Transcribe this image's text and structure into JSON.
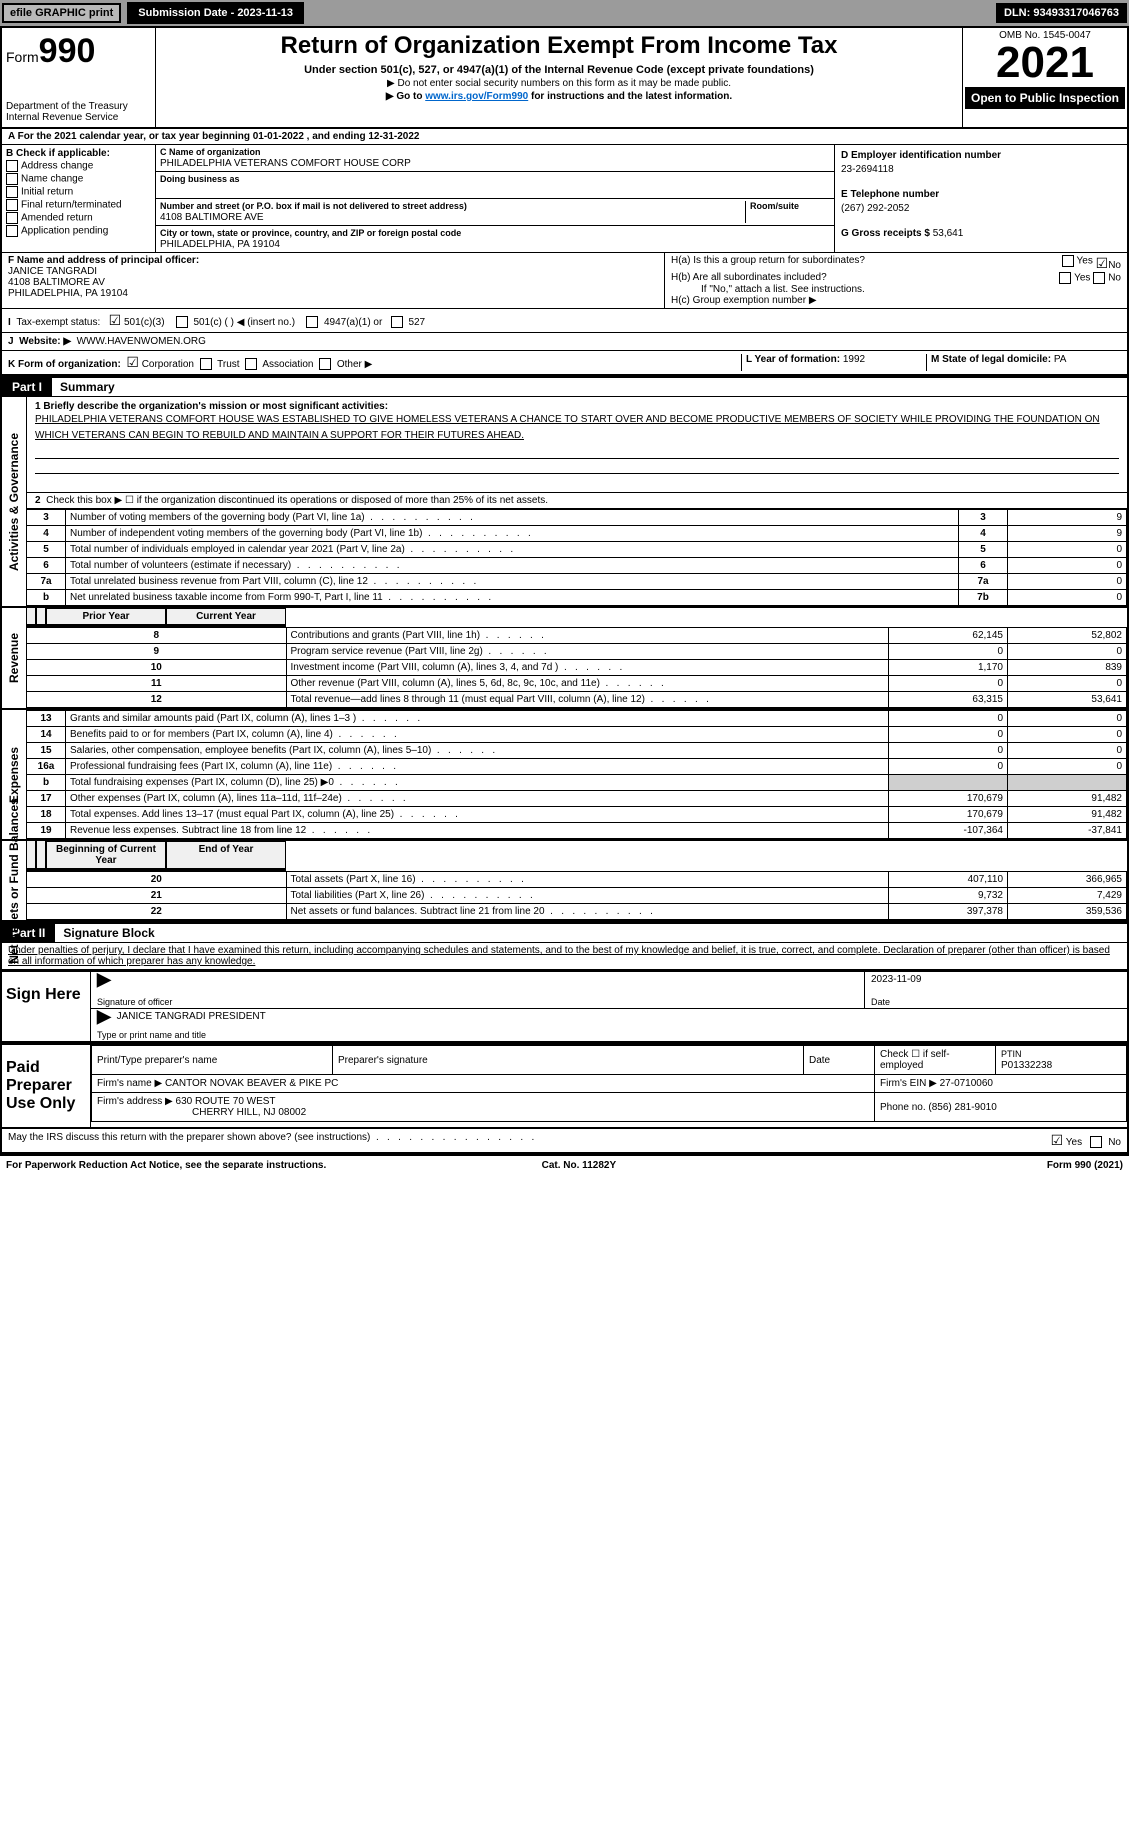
{
  "topbar": {
    "efile": "efile GRAPHIC print",
    "sub_label": "Submission Date - 2023-11-13",
    "dln": "DLN: 93493317046763"
  },
  "header": {
    "form_prefix": "Form",
    "form_no": "990",
    "dept": "Department of the Treasury",
    "irs": "Internal Revenue Service",
    "title": "Return of Organization Exempt From Income Tax",
    "subtitle": "Under section 501(c), 527, or 4947(a)(1) of the Internal Revenue Code (except private foundations)",
    "note1": "▶ Do not enter social security numbers on this form as it may be made public.",
    "note2_pre": "▶ Go to ",
    "note2_link": "www.irs.gov/Form990",
    "note2_post": " for instructions and the latest information.",
    "omb": "OMB No. 1545-0047",
    "year": "2021",
    "open": "Open to Public Inspection"
  },
  "period": {
    "text": "For the 2021 calendar year, or tax year beginning 01-01-2022   , and ending 12-31-2022"
  },
  "blockB": {
    "title": "B Check if applicable:",
    "items": [
      "Address change",
      "Name change",
      "Initial return",
      "Final return/terminated",
      "Amended return",
      "Application pending"
    ]
  },
  "blockC": {
    "name_lbl": "C Name of organization",
    "name": "PHILADELPHIA VETERANS COMFORT HOUSE CORP",
    "dba_lbl": "Doing business as",
    "dba": "",
    "addr_lbl": "Number and street (or P.O. box if mail is not delivered to street address)",
    "room_lbl": "Room/suite",
    "addr": "4108 BALTIMORE AVE",
    "city_lbl": "City or town, state or province, country, and ZIP or foreign postal code",
    "city": "PHILADELPHIA, PA  19104"
  },
  "blockR": {
    "ein_lbl": "D Employer identification number",
    "ein": "23-2694118",
    "phone_lbl": "E Telephone number",
    "phone": "(267) 292-2052",
    "gross_lbl": "G Gross receipts $",
    "gross": "53,641"
  },
  "officer": {
    "lbl": "F  Name and address of principal officer:",
    "name": "JANICE TANGRADI",
    "addr1": "4108 BALTIMORE AV",
    "addr2": "PHILADELPHIA, PA  19104",
    "ha": "H(a)  Is this a group return for subordinates?",
    "hb": "H(b)  Are all subordinates included?",
    "hb_note": "If \"No,\" attach a list. See instructions.",
    "hc": "H(c)  Group exemption number ▶",
    "yes": "Yes",
    "no": "No"
  },
  "taxstatus": {
    "lbl": "Tax-exempt status:",
    "opts": [
      "501(c)(3)",
      "501(c) (  ) ◀ (insert no.)",
      "4947(a)(1) or",
      "527"
    ]
  },
  "website": {
    "lbl": "Website: ▶",
    "val": "WWW.HAVENWOMEN.ORG"
  },
  "orgform": {
    "lbl": "K Form of organization:",
    "opts": [
      "Corporation",
      "Trust",
      "Association",
      "Other ▶"
    ],
    "year_lbl": "L Year of formation:",
    "year": "1992",
    "state_lbl": "M State of legal domicile:",
    "state": "PA"
  },
  "part1": {
    "hdr": "Part I",
    "title": "Summary",
    "mission_lbl": "1  Briefly describe the organization's mission or most significant activities:",
    "mission": "PHILADELPHIA VETERANS COMFORT HOUSE WAS ESTABLISHED TO GIVE HOMELESS VETERANS A CHANCE TO START OVER AND BECOME PRODUCTIVE MEMBERS OF SOCIETY WHILE PROVIDING THE FOUNDATION ON WHICH VETERANS CAN BEGIN TO REBUILD AND MAINTAIN A SUPPORT FOR THEIR FUTURES AHEAD.",
    "line2": "Check this box ▶ ☐  if the organization discontinued its operations or disposed of more than 25% of its net assets.",
    "rows_a": [
      {
        "n": "3",
        "t": "Number of voting members of the governing body (Part VI, line 1a)",
        "c": "3",
        "v": "9"
      },
      {
        "n": "4",
        "t": "Number of independent voting members of the governing body (Part VI, line 1b)",
        "c": "4",
        "v": "9"
      },
      {
        "n": "5",
        "t": "Total number of individuals employed in calendar year 2021 (Part V, line 2a)",
        "c": "5",
        "v": "0"
      },
      {
        "n": "6",
        "t": "Total number of volunteers (estimate if necessary)",
        "c": "6",
        "v": "0"
      },
      {
        "n": "7a",
        "t": "Total unrelated business revenue from Part VIII, column (C), line 12",
        "c": "7a",
        "v": "0"
      },
      {
        "n": "b",
        "t": "Net unrelated business taxable income from Form 990-T, Part I, line 11",
        "c": "7b",
        "v": "0"
      }
    ],
    "col_prior": "Prior Year",
    "col_curr": "Current Year",
    "rows_rev": [
      {
        "n": "8",
        "t": "Contributions and grants (Part VIII, line 1h)",
        "p": "62,145",
        "c": "52,802"
      },
      {
        "n": "9",
        "t": "Program service revenue (Part VIII, line 2g)",
        "p": "0",
        "c": "0"
      },
      {
        "n": "10",
        "t": "Investment income (Part VIII, column (A), lines 3, 4, and 7d )",
        "p": "1,170",
        "c": "839"
      },
      {
        "n": "11",
        "t": "Other revenue (Part VIII, column (A), lines 5, 6d, 8c, 9c, 10c, and 11e)",
        "p": "0",
        "c": "0"
      },
      {
        "n": "12",
        "t": "Total revenue—add lines 8 through 11 (must equal Part VIII, column (A), line 12)",
        "p": "63,315",
        "c": "53,641"
      }
    ],
    "rows_exp": [
      {
        "n": "13",
        "t": "Grants and similar amounts paid (Part IX, column (A), lines 1–3 )",
        "p": "0",
        "c": "0"
      },
      {
        "n": "14",
        "t": "Benefits paid to or for members (Part IX, column (A), line 4)",
        "p": "0",
        "c": "0"
      },
      {
        "n": "15",
        "t": "Salaries, other compensation, employee benefits (Part IX, column (A), lines 5–10)",
        "p": "0",
        "c": "0"
      },
      {
        "n": "16a",
        "t": "Professional fundraising fees (Part IX, column (A), line 11e)",
        "p": "0",
        "c": "0"
      },
      {
        "n": "b",
        "t": "Total fundraising expenses (Part IX, column (D), line 25) ▶0",
        "p": "",
        "c": ""
      },
      {
        "n": "17",
        "t": "Other expenses (Part IX, column (A), lines 11a–11d, 11f–24e)",
        "p": "170,679",
        "c": "91,482"
      },
      {
        "n": "18",
        "t": "Total expenses. Add lines 13–17 (must equal Part IX, column (A), line 25)",
        "p": "170,679",
        "c": "91,482"
      },
      {
        "n": "19",
        "t": "Revenue less expenses. Subtract line 18 from line 12",
        "p": "-107,364",
        "c": "-37,841"
      }
    ],
    "col_begin": "Beginning of Current Year",
    "col_end": "End of Year",
    "rows_net": [
      {
        "n": "20",
        "t": "Total assets (Part X, line 16)",
        "p": "407,110",
        "c": "366,965"
      },
      {
        "n": "21",
        "t": "Total liabilities (Part X, line 26)",
        "p": "9,732",
        "c": "7,429"
      },
      {
        "n": "22",
        "t": "Net assets or fund balances. Subtract line 21 from line 20",
        "p": "397,378",
        "c": "359,536"
      }
    ],
    "tabs": [
      "Activities & Governance",
      "Revenue",
      "Expenses",
      "Net Assets or Fund Balances"
    ]
  },
  "part2": {
    "hdr": "Part II",
    "title": "Signature Block",
    "decl": "Under penalties of perjury, I declare that I have examined this return, including accompanying schedules and statements, and to the best of my knowledge and belief, it is true, correct, and complete. Declaration of preparer (other than officer) is based on all information of which preparer has any knowledge."
  },
  "sign": {
    "lab": "Sign Here",
    "sig_of": "Signature of officer",
    "date": "2023-11-09",
    "date_lbl": "Date",
    "name": "JANICE TANGRADI  PRESIDENT",
    "name_lbl": "Type or print name and title"
  },
  "paid": {
    "lab": "Paid Preparer Use Only",
    "h1": "Print/Type preparer's name",
    "h2": "Preparer's signature",
    "h3": "Date",
    "h4": "Check ☐ if self-employed",
    "h5_lbl": "PTIN",
    "h5": "P01332238",
    "firm_lbl": "Firm's name    ▶",
    "firm": "CANTOR NOVAK BEAVER & PIKE PC",
    "ein_lbl": "Firm's EIN ▶",
    "ein": "27-0710060",
    "addr_lbl": "Firm's address ▶",
    "addr1": "630 ROUTE 70 WEST",
    "addr2": "CHERRY HILL, NJ  08002",
    "phone_lbl": "Phone no.",
    "phone": "(856) 281-9010",
    "discuss": "May the IRS discuss this return with the preparer shown above? (see instructions)",
    "yes": "Yes",
    "no": "No"
  },
  "footer": {
    "l": "For Paperwork Reduction Act Notice, see the separate instructions.",
    "m": "Cat. No. 11282Y",
    "r": "Form 990 (2021)"
  }
}
